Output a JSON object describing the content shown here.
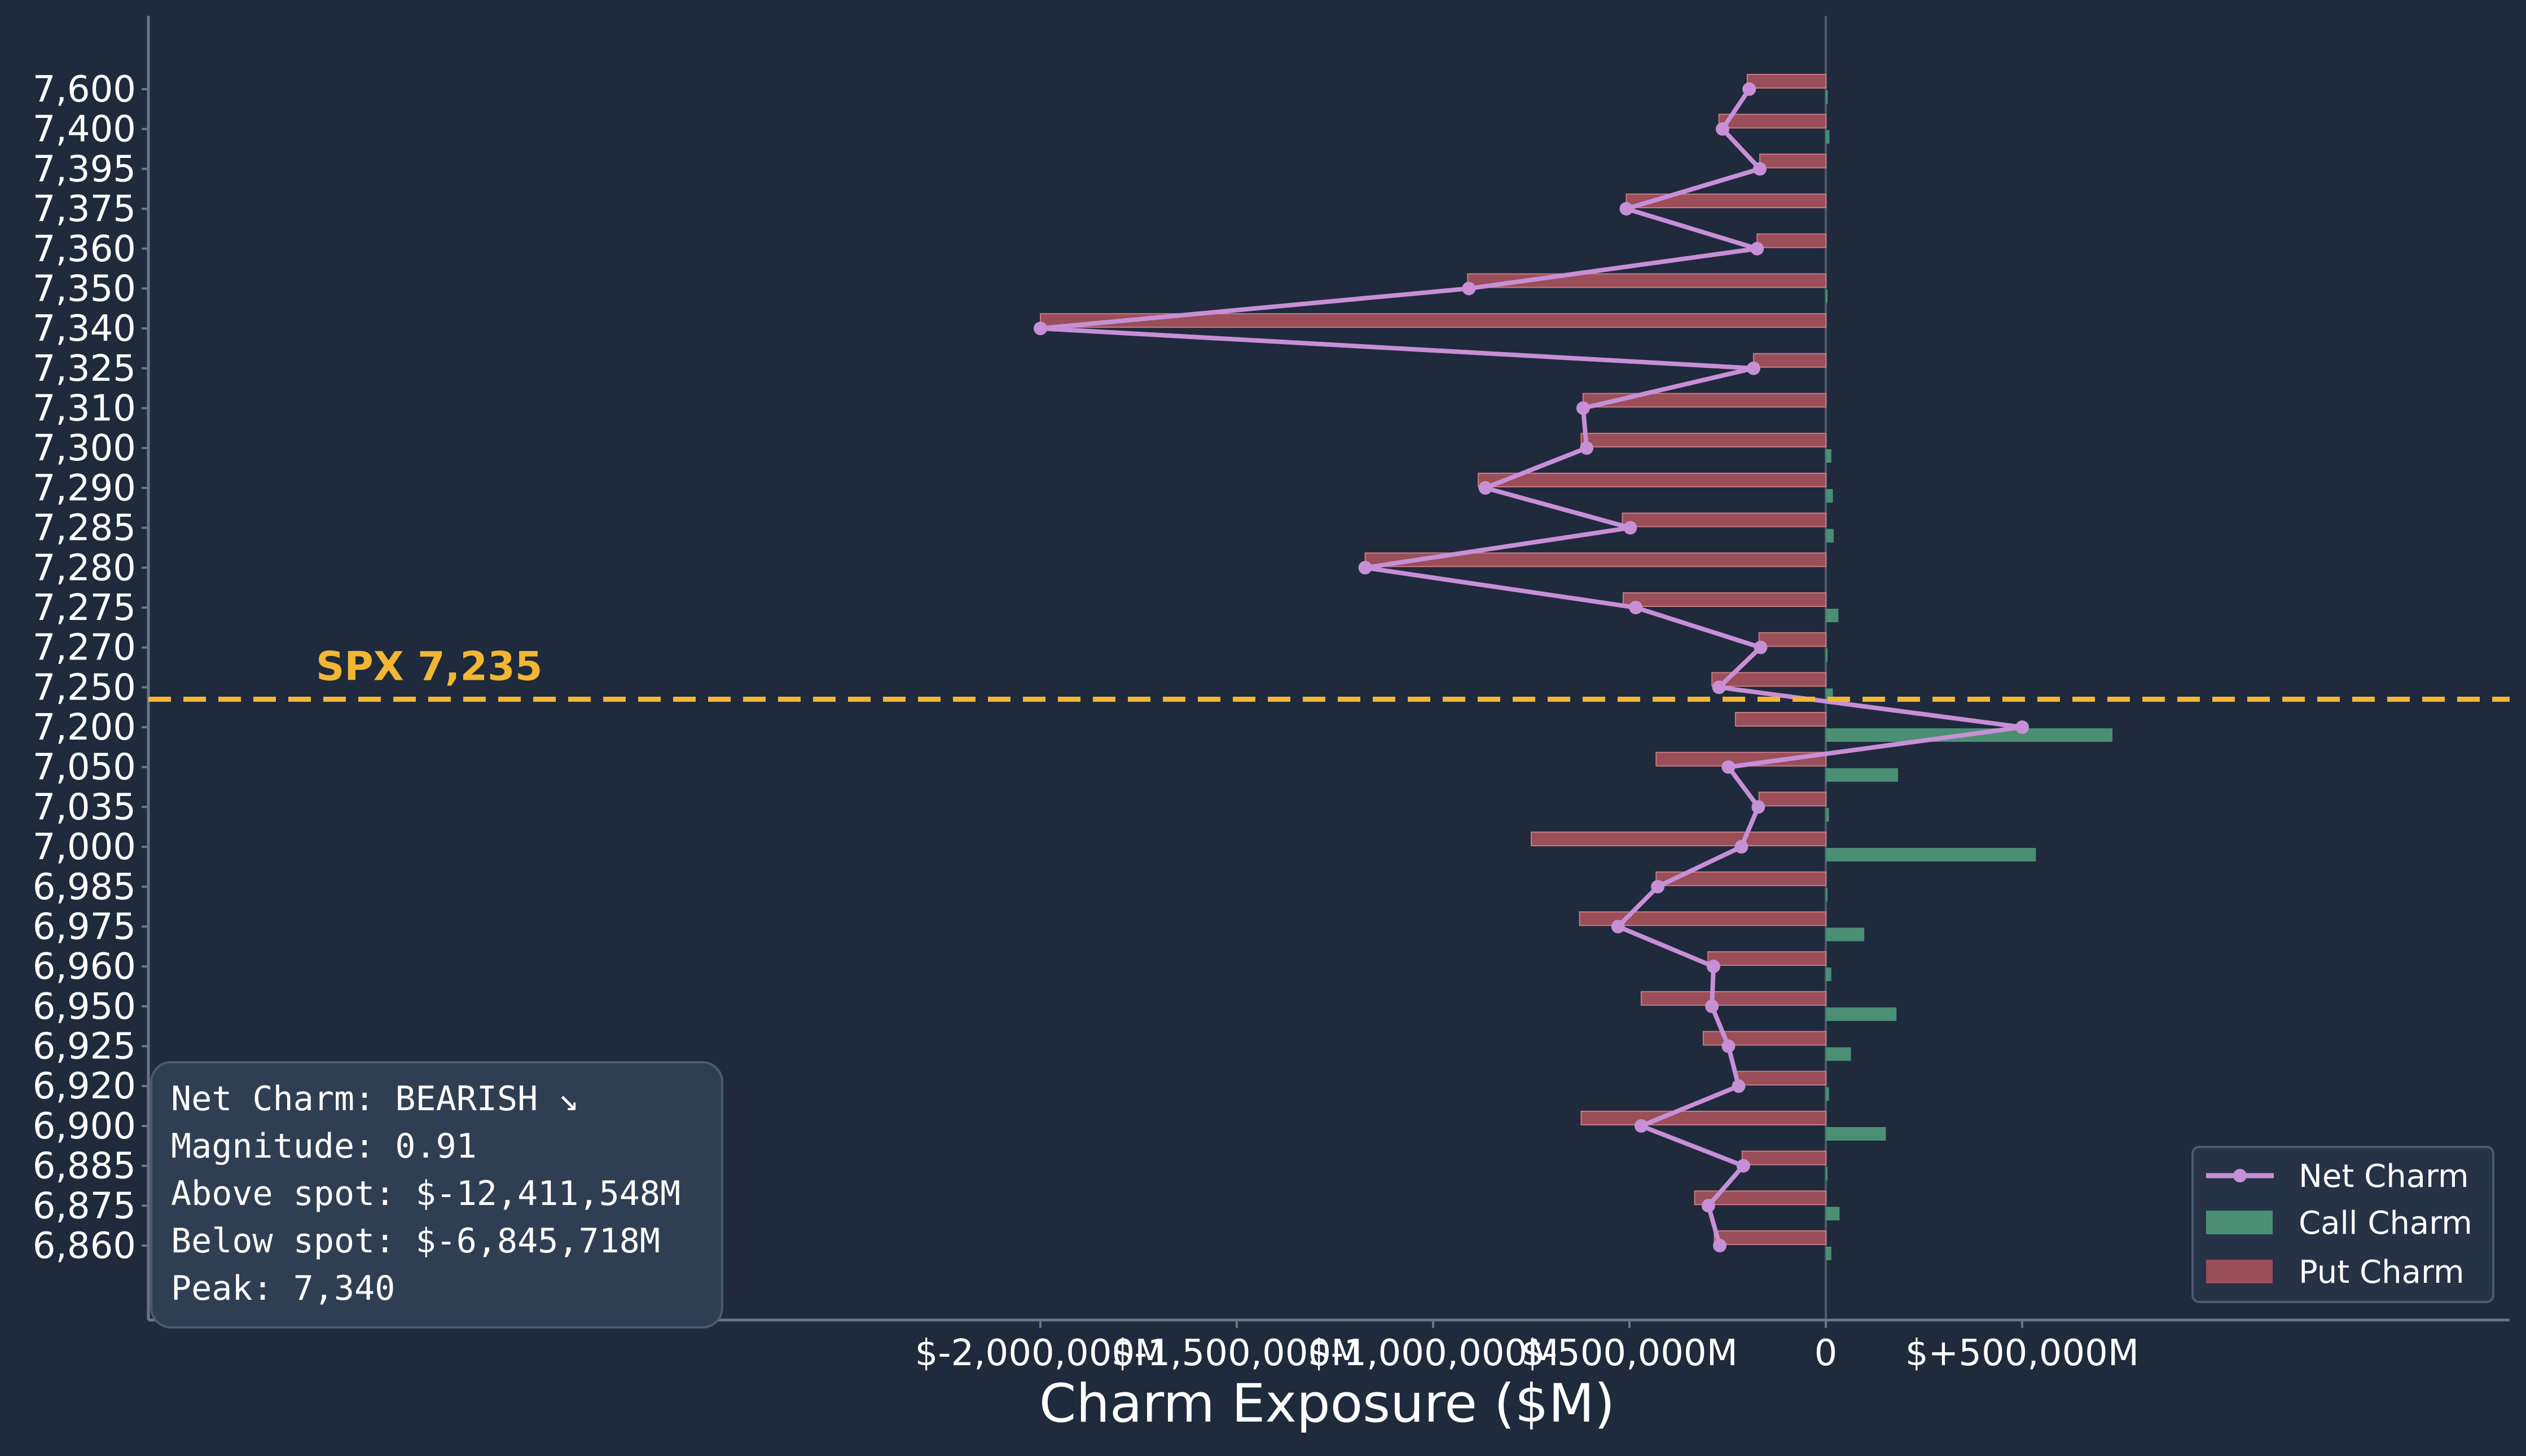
{
  "chart_data": {
    "type": "bar",
    "xlabel": "Charm Exposure ($M)",
    "categories": [
      "7,600",
      "7,400",
      "7,395",
      "7,375",
      "7,360",
      "7,350",
      "7,340",
      "7,325",
      "7,310",
      "7,300",
      "7,290",
      "7,285",
      "7,280",
      "7,275",
      "7,270",
      "7,250",
      "7,200",
      "7,050",
      "7,035",
      "7,000",
      "6,985",
      "6,975",
      "6,960",
      "6,950",
      "6,925",
      "6,920",
      "6,900",
      "6,885",
      "6,875",
      "6,860"
    ],
    "x_ticks": [
      {
        "value": -2000000,
        "label": "$-2,000,000M"
      },
      {
        "value": -1500000,
        "label": "$-1,500,000M"
      },
      {
        "value": -1000000,
        "label": "$-1,000,000M"
      },
      {
        "value": -500000,
        "label": "$-500,000M"
      },
      {
        "value": 0,
        "label": "0"
      },
      {
        "value": 500000,
        "label": "$+500,000M"
      }
    ],
    "xlim": [
      -2140000,
      870000
    ],
    "series": [
      {
        "name": "Call Charm",
        "kind": "bar",
        "color": "#4a8f74",
        "values": [
          5000,
          9000,
          0,
          0,
          0,
          3000,
          0,
          0,
          0,
          14000,
          18000,
          20000,
          0,
          32000,
          4000,
          18000,
          730000,
          184000,
          8000,
          535000,
          4000,
          98000,
          14000,
          180000,
          64000,
          8000,
          153000,
          3000,
          35000,
          14000
        ]
      },
      {
        "name": "Put Charm",
        "kind": "bar",
        "color": "#9a4e57",
        "values": [
          -200000,
          -272000,
          -168000,
          -508000,
          -175000,
          -912000,
          -2000000,
          -184000,
          -618000,
          -623000,
          -885000,
          -518000,
          -1173000,
          -516000,
          -170000,
          -290000,
          -230000,
          -432000,
          -170000,
          -750000,
          -432000,
          -627000,
          -300000,
          -470000,
          -312000,
          -230000,
          -623000,
          -213000,
          -334000,
          -284000
        ]
      },
      {
        "name": "Net Charm",
        "kind": "line",
        "color": "#c78fd6",
        "values": [
          -195000,
          -263000,
          -168000,
          -508000,
          -175000,
          -909000,
          -2000000,
          -184000,
          -618000,
          -609000,
          -867000,
          -498000,
          -1173000,
          -484000,
          -166000,
          -272000,
          500000,
          -248000,
          -172000,
          -215000,
          -428000,
          -529000,
          -286000,
          -290000,
          -248000,
          -222000,
          -470000,
          -210000,
          -299000,
          -270000
        ]
      }
    ],
    "spot": {
      "label": "SPX 7,235",
      "color": "#f2b632"
    },
    "legend": {
      "placement": "bottom-right",
      "items": [
        "Net Charm",
        "Call Charm",
        "Put Charm"
      ]
    },
    "grid": false
  },
  "summary_box": {
    "line1": "Net Charm: BEARISH ↘",
    "line2": "Magnitude: 0.91",
    "line3": "Above spot: $-12,411,548M",
    "line4": "Below spot: $-6,845,718M",
    "line5": "Peak: 7,340"
  }
}
